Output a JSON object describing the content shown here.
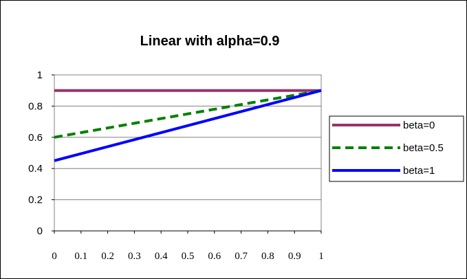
{
  "chart_data": {
    "type": "line",
    "title": "Linear with alpha=0.9",
    "xlabel": "",
    "ylabel": "",
    "xlim": [
      0,
      1
    ],
    "ylim": [
      0,
      1
    ],
    "x_ticks": [
      "0",
      "0.1",
      "0.2",
      "0.3",
      "0.4",
      "0.5",
      "0.6",
      "0.7",
      "0.8",
      "0.9",
      "1"
    ],
    "y_ticks": [
      "0",
      "0.2",
      "0.4",
      "0.6",
      "0.8",
      "1"
    ],
    "grid": "horizontal",
    "legend_position": "right",
    "series": [
      {
        "name": "beta=0",
        "color": "#993366",
        "dash": "solid",
        "x": [
          0,
          1
        ],
        "y": [
          0.9,
          0.9
        ]
      },
      {
        "name": "beta=0.5",
        "color": "#008000",
        "dash": "dashed",
        "x": [
          0,
          1
        ],
        "y": [
          0.6,
          0.9
        ]
      },
      {
        "name": "beta=1",
        "color": "#0000FF",
        "dash": "solid",
        "x": [
          0,
          1
        ],
        "y": [
          0.45,
          0.9
        ]
      }
    ]
  }
}
